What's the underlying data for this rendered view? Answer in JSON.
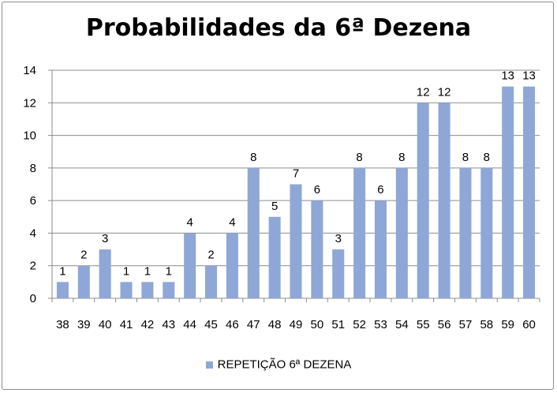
{
  "chart_data": {
    "type": "bar",
    "title": "Probabilidades da 6ª Dezena",
    "xlabel": "",
    "ylabel": "",
    "categories": [
      "38",
      "39",
      "40",
      "41",
      "42",
      "43",
      "44",
      "45",
      "46",
      "47",
      "48",
      "49",
      "50",
      "51",
      "52",
      "53",
      "54",
      "55",
      "56",
      "57",
      "58",
      "59",
      "60"
    ],
    "series": [
      {
        "name": "REPETIÇÃO 6ª DEZENA",
        "values": [
          1,
          2,
          3,
          1,
          1,
          1,
          4,
          2,
          4,
          8,
          5,
          7,
          6,
          3,
          8,
          6,
          8,
          12,
          12,
          8,
          8,
          13,
          13
        ],
        "color": "#8ea7d6"
      }
    ],
    "ylim": [
      0,
      14
    ],
    "yticks": [
      "0",
      "2",
      "4",
      "6",
      "8",
      "10",
      "12",
      "14"
    ],
    "grid": true,
    "data_labels": true,
    "legend_position": "bottom"
  }
}
